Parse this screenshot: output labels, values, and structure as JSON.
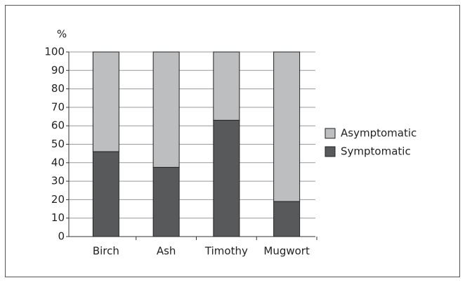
{
  "chart_data": {
    "type": "stacked_bar",
    "y_label": "%",
    "categories": [
      "Birch",
      "Ash",
      "Timothy",
      "Mugwort"
    ],
    "series": [
      {
        "name": "Symptomatic",
        "color": "#58595b",
        "values": [
          46,
          37.5,
          63,
          19
        ]
      },
      {
        "name": "Asymptomatic",
        "color": "#bcbec0",
        "values": [
          54,
          62.5,
          37,
          81
        ]
      }
    ],
    "ylim": [
      0,
      100
    ],
    "yticks": [
      0,
      10,
      20,
      30,
      40,
      50,
      60,
      70,
      80,
      90,
      100
    ],
    "grid": true,
    "legend": "right"
  }
}
